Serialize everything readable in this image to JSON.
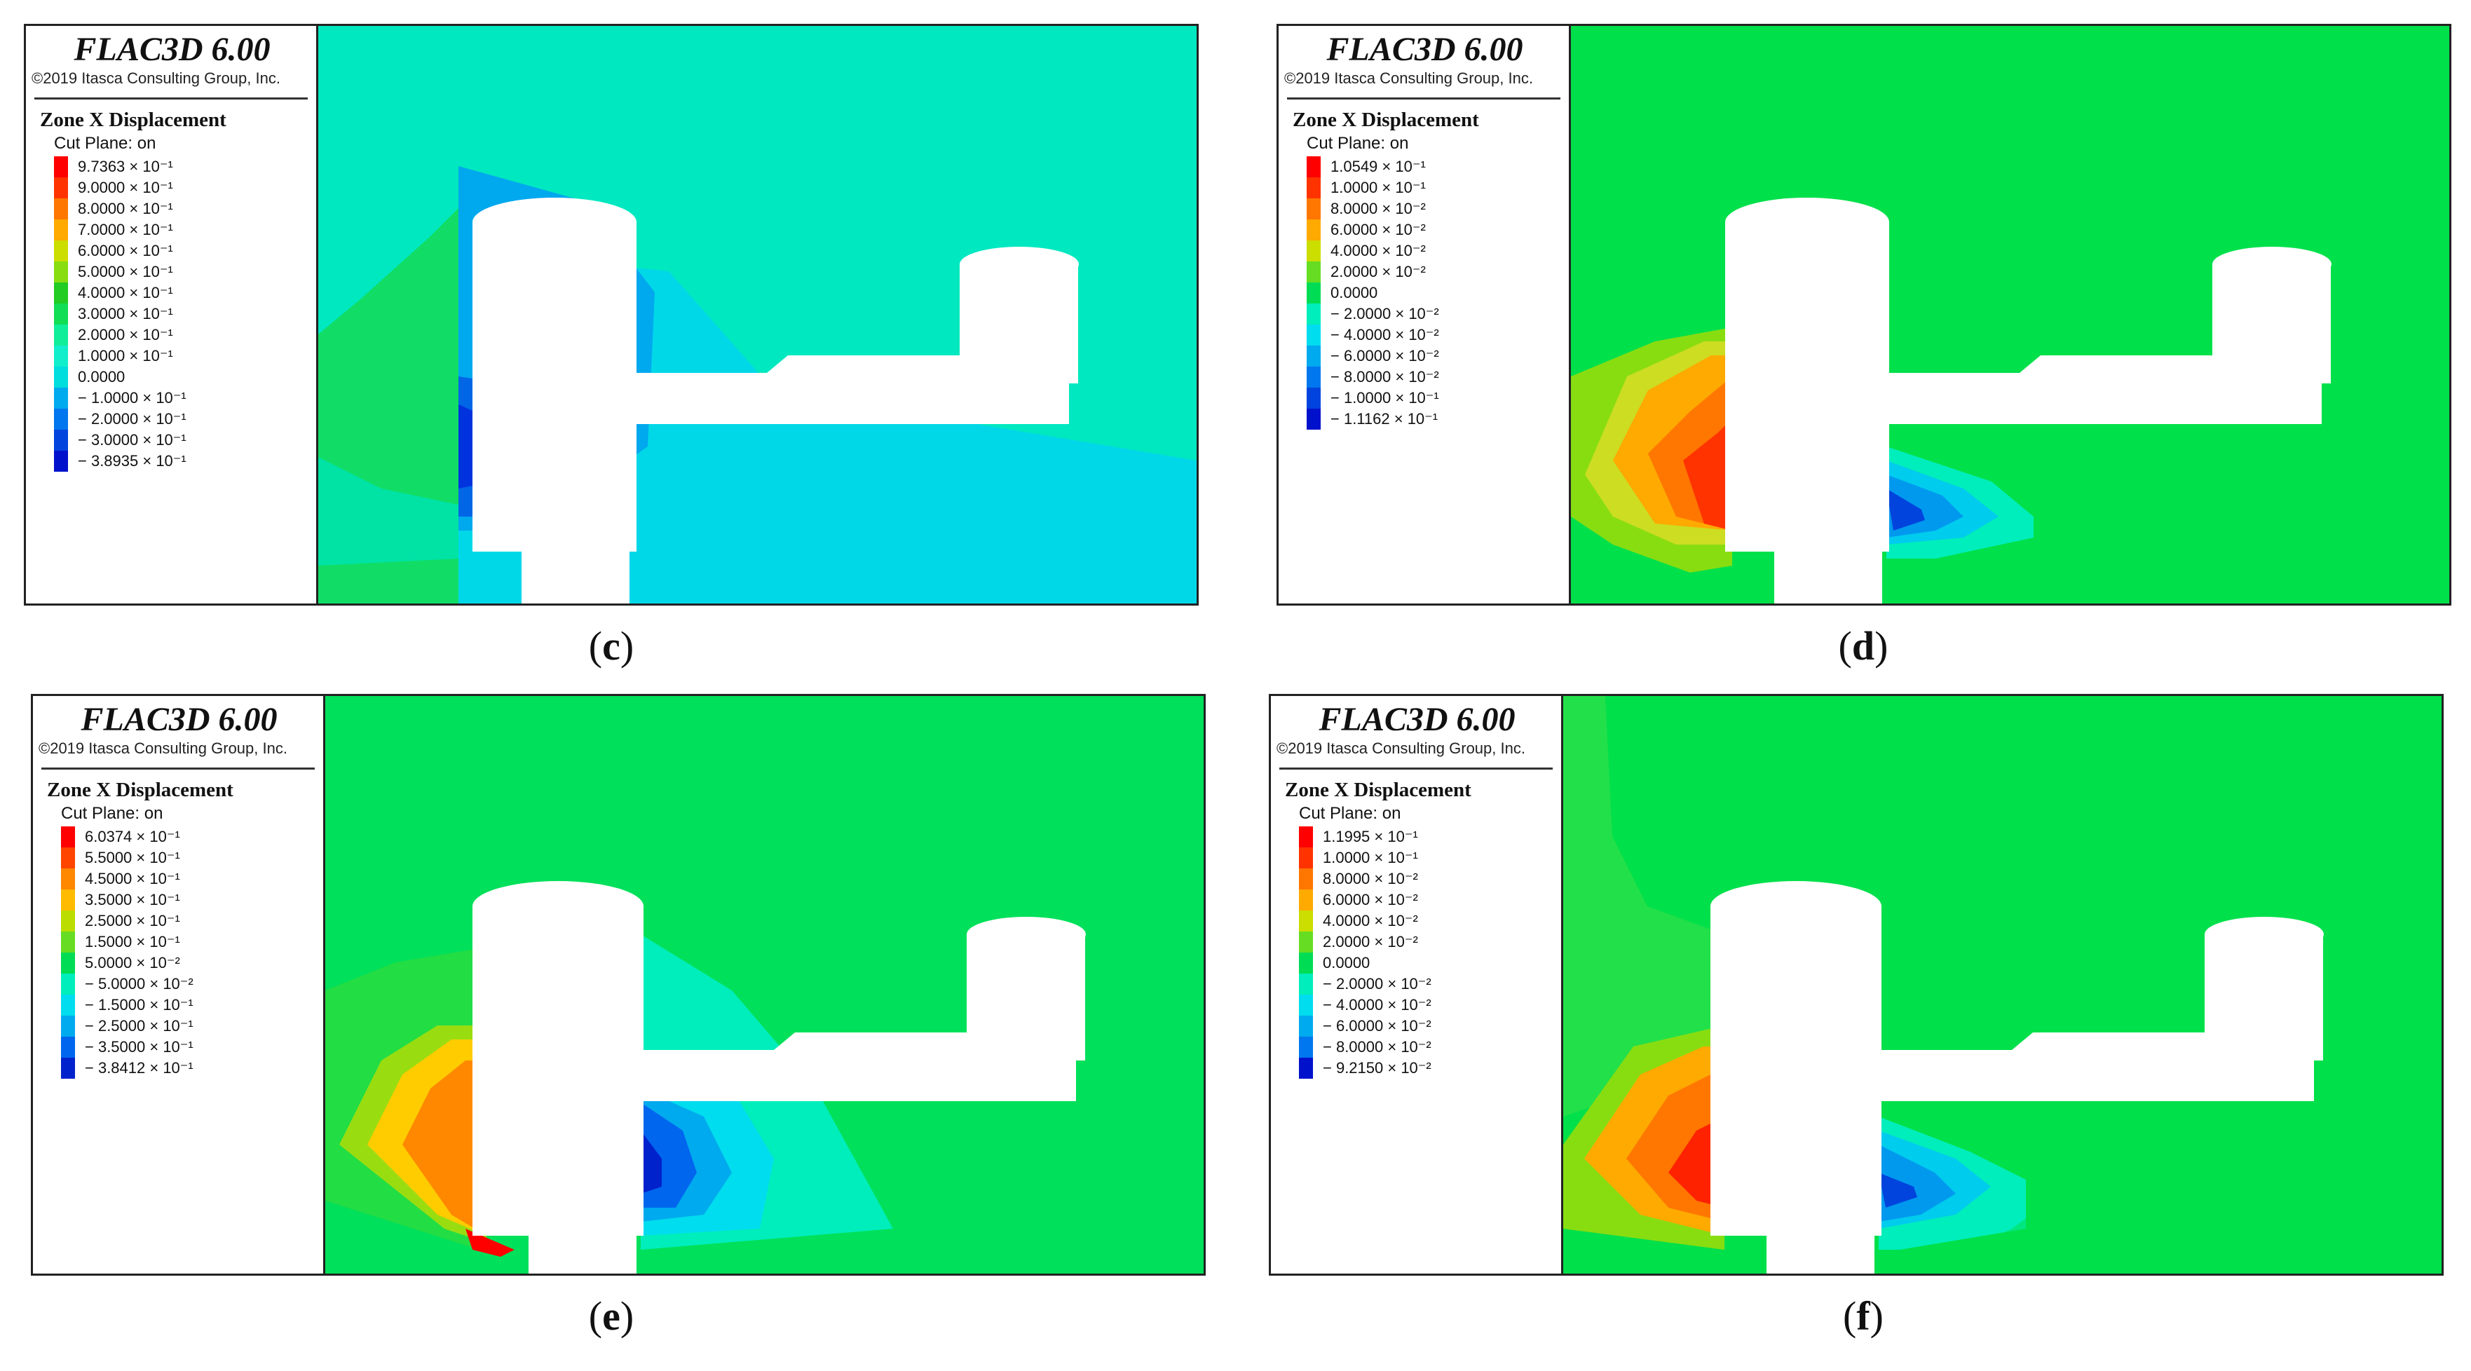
{
  "panels": [
    {
      "title": "FLAC3D 6.00",
      "copyright": "©2019 Itasca Consulting Group, Inc.",
      "field": "Zone X Displacement",
      "cut_plane": "Cut Plane: on",
      "legend": [
        {
          "label": "9.7363 × 10⁻¹",
          "color": "#ff0000"
        },
        {
          "label": "9.0000 × 10⁻¹",
          "color": "#ff3300"
        },
        {
          "label": "8.0000 × 10⁻¹",
          "color": "#ff7700"
        },
        {
          "label": "7.0000 × 10⁻¹",
          "color": "#ffaa00"
        },
        {
          "label": "6.0000 × 10⁻¹",
          "color": "#ccdd00"
        },
        {
          "label": "5.0000 × 10⁻¹",
          "color": "#88dd11"
        },
        {
          "label": "4.0000 × 10⁻¹",
          "color": "#22cc22"
        },
        {
          "label": "3.0000 × 10⁻¹",
          "color": "#11dd55"
        },
        {
          "label": "2.0000 × 10⁻¹",
          "color": "#11ee99"
        },
        {
          "label": "1.0000 × 10⁻¹",
          "color": "#11eecc"
        },
        {
          "label": "0.0000",
          "color": "#00dddd"
        },
        {
          "label": "− 1.0000 × 10⁻¹",
          "color": "#00aaee"
        },
        {
          "label": "− 2.0000 × 10⁻¹",
          "color": "#0077ee"
        },
        {
          "label": "− 3.0000 × 10⁻¹",
          "color": "#0044dd"
        },
        {
          "label": "− 3.8935 × 10⁻¹",
          "color": "#0011cc"
        }
      ],
      "caption": "c",
      "colors": {
        "background": "#00e8c0",
        "left_zone": "#11dd66",
        "low": "#00d8e8",
        "mid": "#00a8ee",
        "deep": "#0066e6",
        "core": "#0033dd",
        "high": "#ffaa00"
      }
    },
    {
      "title": "FLAC3D 6.00",
      "copyright": "©2019 Itasca Consulting Group, Inc.",
      "field": "Zone X Displacement",
      "cut_plane": "Cut Plane: on",
      "legend": [
        {
          "label": "1.0549 × 10⁻¹",
          "color": "#ff0000"
        },
        {
          "label": "1.0000 × 10⁻¹",
          "color": "#ff3300"
        },
        {
          "label": "8.0000 × 10⁻²",
          "color": "#ff7700"
        },
        {
          "label": "6.0000 × 10⁻²",
          "color": "#ffaa00"
        },
        {
          "label": "4.0000 × 10⁻²",
          "color": "#ccdd00"
        },
        {
          "label": "2.0000 × 10⁻²",
          "color": "#66dd22"
        },
        {
          "label": "0.0000",
          "color": "#00dd55"
        },
        {
          "label": "− 2.0000 × 10⁻²",
          "color": "#00eebb"
        },
        {
          "label": "− 4.0000 × 10⁻²",
          "color": "#00ddee"
        },
        {
          "label": "− 6.0000 × 10⁻²",
          "color": "#00aaee"
        },
        {
          "label": "− 8.0000 × 10⁻²",
          "color": "#0077ee"
        },
        {
          "label": "− 1.0000 × 10⁻¹",
          "color": "#0044dd"
        },
        {
          "label": "− 1.1162 × 10⁻¹",
          "color": "#0011cc"
        }
      ],
      "caption": "d",
      "colors": {
        "background": "#00e04a"
      }
    },
    {
      "title": "FLAC3D 6.00",
      "copyright": "©2019 Itasca Consulting Group, Inc.",
      "field": "Zone X Displacement",
      "cut_plane": "Cut Plane: on",
      "legend": [
        {
          "label": "6.0374 × 10⁻¹",
          "color": "#ff0000"
        },
        {
          "label": "5.5000 × 10⁻¹",
          "color": "#ff4400"
        },
        {
          "label": "4.5000 × 10⁻¹",
          "color": "#ff8800"
        },
        {
          "label": "3.5000 × 10⁻¹",
          "color": "#ffbb00"
        },
        {
          "label": "2.5000 × 10⁻¹",
          "color": "#bbdd00"
        },
        {
          "label": "1.5000 × 10⁻¹",
          "color": "#66dd22"
        },
        {
          "label": "5.0000 × 10⁻²",
          "color": "#00dd55"
        },
        {
          "label": "− 5.0000 × 10⁻²",
          "color": "#00eebb"
        },
        {
          "label": "− 1.5000 × 10⁻¹",
          "color": "#00ddee"
        },
        {
          "label": "− 2.5000 × 10⁻¹",
          "color": "#00aaee"
        },
        {
          "label": "− 3.5000 × 10⁻¹",
          "color": "#0066ee"
        },
        {
          "label": "− 3.8412 × 10⁻¹",
          "color": "#0022cc"
        }
      ],
      "caption": "e",
      "colors": {
        "background": "#00e05a"
      }
    },
    {
      "title": "FLAC3D 6.00",
      "copyright": "©2019 Itasca Consulting Group, Inc.",
      "field": "Zone X Displacement",
      "cut_plane": "Cut Plane: on",
      "legend": [
        {
          "label": "1.1995 × 10⁻¹",
          "color": "#ff0000"
        },
        {
          "label": "1.0000 × 10⁻¹",
          "color": "#ff3300"
        },
        {
          "label": "8.0000 × 10⁻²",
          "color": "#ff7700"
        },
        {
          "label": "6.0000 × 10⁻²",
          "color": "#ffaa00"
        },
        {
          "label": "4.0000 × 10⁻²",
          "color": "#ccdd00"
        },
        {
          "label": "2.0000 × 10⁻²",
          "color": "#66dd22"
        },
        {
          "label": "0.0000",
          "color": "#00dd55"
        },
        {
          "label": "− 2.0000 × 10⁻²",
          "color": "#00eebb"
        },
        {
          "label": "− 4.0000 × 10⁻²",
          "color": "#00ddee"
        },
        {
          "label": "− 6.0000 × 10⁻²",
          "color": "#00aaee"
        },
        {
          "label": "− 8.0000 × 10⁻²",
          "color": "#0077ee"
        },
        {
          "label": "− 9.2150 × 10⁻²",
          "color": "#0011cc"
        }
      ],
      "caption": "f",
      "colors": {
        "background": "#00e04a"
      }
    }
  ]
}
